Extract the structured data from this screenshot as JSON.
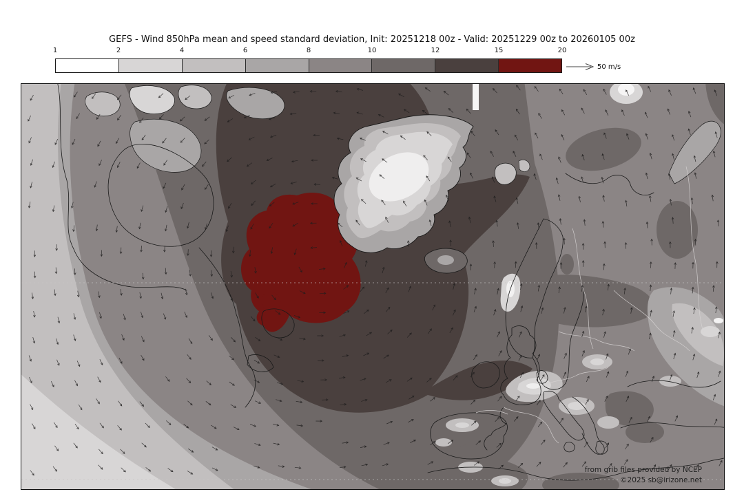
{
  "title": "GEFS - Wind 850hPa mean and speed standard deviation, Init: 20251218 00z - Valid: 20251229 00z to 20260105 00z",
  "legend": {
    "tick_labels": [
      "1",
      "2",
      "4",
      "6",
      "8",
      "10",
      "12",
      "15",
      "20"
    ],
    "segments": [
      {
        "range": "1-2",
        "color": "#ffffff"
      },
      {
        "range": "2-4",
        "color": "#d8d6d6"
      },
      {
        "range": "4-6",
        "color": "#c2bfbf"
      },
      {
        "range": "6-8",
        "color": "#a9a6a6"
      },
      {
        "range": "8-10",
        "color": "#8b8585"
      },
      {
        "range": "10-12",
        "color": "#6e6867"
      },
      {
        "range": "12-15",
        "color": "#4a403e"
      },
      {
        "range": "15-20",
        "color": "#711512"
      }
    ],
    "reference_arrow_label": "50 m/s"
  },
  "map": {
    "attribution": [
      "from grib files provided by NCEP",
      "©2025 sb@irizone.net"
    ],
    "colors": {
      "ocean_base": "#8b8585",
      "coastline": "#1a1a1a",
      "country_border": "#d6d3d3",
      "latitude_line": "#c9c6c6",
      "wind_barb": "#1f1d1d",
      "max_band": "#711512"
    }
  }
}
